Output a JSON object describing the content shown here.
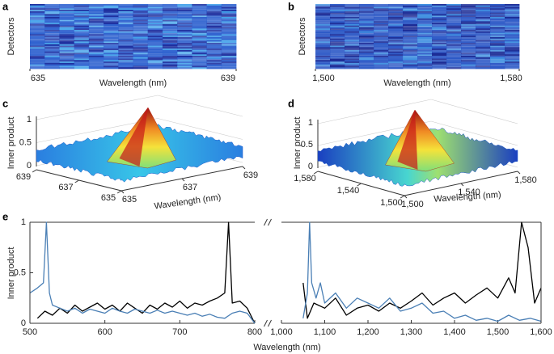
{
  "chart_data": [
    {
      "type": "heatmap",
      "label": "a",
      "xlabel": "Wavelength (nm)",
      "ylabel": "Detectors",
      "xlim": [
        635,
        639
      ],
      "xticks": [
        635,
        639
      ],
      "colormap": [
        "#1b2d9e",
        "#2f62cf",
        "#46a3ea"
      ]
    },
    {
      "type": "heatmap",
      "label": "b",
      "xlabel": "Wavelength (nm)",
      "ylabel": "Detectors",
      "xlim": [
        1500,
        1580
      ],
      "xticks": [
        {
          "value": 1500,
          "label": "1,500"
        },
        {
          "value": 1580,
          "label": "1,580"
        }
      ],
      "colormap": [
        "#1a2a95",
        "#2c58c6",
        "#3f8fe0"
      ]
    },
    {
      "type": "surface",
      "label": "c",
      "xlabel": "Wavelength (nm)",
      "zlabel": "Inner product",
      "zlim": [
        0,
        1
      ],
      "zticks": [
        0,
        0.5,
        1
      ],
      "left_ticks": [
        639,
        637,
        635
      ],
      "right_ticks": [
        635,
        637,
        639
      ]
    },
    {
      "type": "surface",
      "label": "d",
      "xlabel": "Wavelength (nm)",
      "zlabel": "Inner product",
      "zlim": [
        0,
        1
      ],
      "zticks": [
        0,
        0.5,
        1
      ],
      "left_ticks": [
        {
          "value": 1580,
          "label": "1,580"
        },
        {
          "value": 1540,
          "label": "1,540"
        },
        {
          "value": 1500,
          "label": "1,500"
        }
      ],
      "right_ticks": [
        {
          "value": 1500,
          "label": "1,500"
        },
        {
          "value": 1540,
          "label": "1,540"
        },
        {
          "value": 1580,
          "label": "1,580"
        }
      ]
    },
    {
      "type": "line",
      "label": "e",
      "xlabel": "Wavelength (nm)",
      "ylabel": "Inner product",
      "ylim": [
        0,
        1
      ],
      "yticks": [
        0,
        0.5,
        1
      ],
      "segments": [
        {
          "xlim": [
            500,
            800
          ],
          "xticks": [
            500,
            600,
            700,
            800
          ],
          "series": [
            {
              "color": "#000000",
              "x": [
                510,
                520,
                530,
                540,
                550,
                560,
                570,
                580,
                590,
                600,
                610,
                620,
                630,
                640,
                650,
                660,
                670,
                680,
                690,
                700,
                710,
                720,
                730,
                740,
                750,
                760,
                765,
                770,
                780,
                790,
                800
              ],
              "values": [
                0.05,
                0.12,
                0.08,
                0.15,
                0.1,
                0.18,
                0.12,
                0.16,
                0.2,
                0.14,
                0.18,
                0.12,
                0.2,
                0.15,
                0.1,
                0.18,
                0.14,
                0.2,
                0.16,
                0.22,
                0.15,
                0.2,
                0.18,
                0.22,
                0.25,
                0.3,
                1,
                0.2,
                0.22,
                0.15,
                0
              ]
            },
            {
              "color": "#4a7fb5",
              "x": [
                500,
                510,
                518,
                522,
                526,
                530,
                540,
                550,
                560,
                570,
                580,
                590,
                600,
                610,
                620,
                630,
                640,
                650,
                660,
                670,
                680,
                690,
                700,
                710,
                720,
                730,
                740,
                750,
                760,
                770,
                780,
                790,
                800
              ],
              "values": [
                0.3,
                0.35,
                0.4,
                1,
                0.3,
                0.18,
                0.15,
                0.12,
                0.15,
                0.1,
                0.14,
                0.12,
                0.1,
                0.15,
                0.12,
                0.1,
                0.14,
                0.12,
                0.1,
                0.13,
                0.1,
                0.12,
                0.1,
                0.08,
                0.1,
                0.07,
                0.09,
                0.06,
                0.05,
                0.1,
                0.12,
                0.1,
                0
              ]
            }
          ]
        },
        {
          "xlim": [
            1000,
            1600
          ],
          "xticks": [
            {
              "value": 1000,
              "label": "1,000"
            },
            {
              "value": 1100,
              "label": "1,100"
            },
            {
              "value": 1200,
              "label": "1,200"
            },
            {
              "value": 1300,
              "label": "1,300"
            },
            {
              "value": 1400,
              "label": "1,400"
            },
            {
              "value": 1500,
              "label": "1,500"
            },
            {
              "value": 1600,
              "label": "1,600"
            }
          ],
          "series": [
            {
              "color": "#000000",
              "x": [
                1050,
                1060,
                1075,
                1100,
                1125,
                1150,
                1175,
                1200,
                1225,
                1250,
                1275,
                1300,
                1325,
                1350,
                1375,
                1400,
                1425,
                1450,
                1475,
                1500,
                1525,
                1540,
                1555,
                1570,
                1585,
                1600
              ],
              "values": [
                0.4,
                0.05,
                0.2,
                0.15,
                0.25,
                0.08,
                0.15,
                0.18,
                0.12,
                0.2,
                0.15,
                0.22,
                0.3,
                0.18,
                0.25,
                0.3,
                0.2,
                0.28,
                0.35,
                0.25,
                0.45,
                0.3,
                1,
                0.75,
                0.2,
                0.35
              ]
            },
            {
              "color": "#4a7fb5",
              "x": [
                1050,
                1060,
                1065,
                1070,
                1080,
                1090,
                1100,
                1125,
                1150,
                1175,
                1200,
                1225,
                1250,
                1275,
                1300,
                1325,
                1350,
                1375,
                1400,
                1425,
                1450,
                1475,
                1500,
                1525,
                1550,
                1575,
                1600
              ],
              "values": [
                0.05,
                0.3,
                1,
                0.4,
                0.25,
                0.4,
                0.2,
                0.3,
                0.15,
                0.25,
                0.2,
                0.15,
                0.25,
                0.12,
                0.15,
                0.2,
                0.1,
                0.12,
                0.05,
                0.08,
                0.03,
                0.05,
                0.02,
                0.08,
                0.03,
                0.05,
                0.02
              ]
            }
          ]
        }
      ]
    }
  ]
}
